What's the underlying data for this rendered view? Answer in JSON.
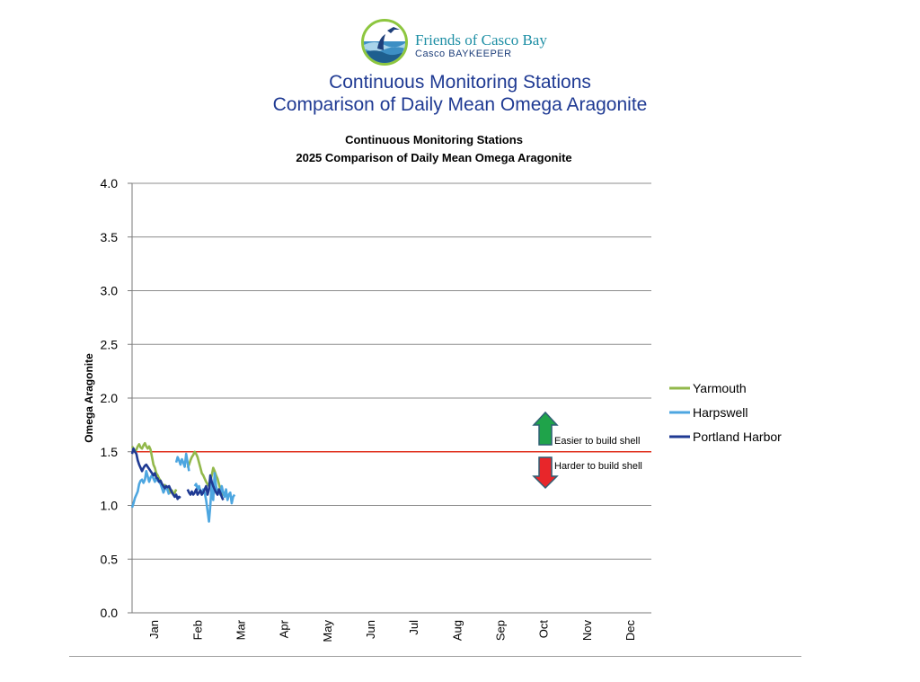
{
  "header": {
    "org_name": "Friends of Casco Bay",
    "org_sub": "Casco BAYKEEPER",
    "title_line1": "Continuous Monitoring Stations",
    "title_line2": "Comparison of Daily Mean Omega Aragonite"
  },
  "chart_data": {
    "type": "line",
    "title_line1": "Continuous Monitoring Stations",
    "title_line2": "2025 Comparison of Daily Mean Omega Aragonite",
    "xlabel": "",
    "ylabel": "Omega Aragonite",
    "ylim": [
      0,
      4
    ],
    "yticks": [
      "0.0",
      "0.5",
      "1.0",
      "1.5",
      "2.0",
      "2.5",
      "3.0",
      "3.5",
      "4.0"
    ],
    "xticks": [
      "Jan",
      "Feb",
      "Mar",
      "Apr",
      "May",
      "Jun",
      "Jul",
      "Aug",
      "Sep",
      "Oct",
      "Nov",
      "Dec"
    ],
    "grid": true,
    "legend_position": "right",
    "threshold": {
      "value": 1.5,
      "color": "#e0301e"
    },
    "annotations": {
      "easier": "Easier to build shell",
      "harder": "Harder to build shell"
    },
    "series": [
      {
        "name": "Yarmouth",
        "color": "#92b84b",
        "segments": [
          [
            [
              1,
              1.55
            ],
            [
              2,
              1.53
            ],
            [
              3,
              1.5
            ],
            [
              4,
              1.52
            ],
            [
              5,
              1.55
            ],
            [
              6,
              1.57
            ],
            [
              7,
              1.54
            ],
            [
              8,
              1.53
            ],
            [
              9,
              1.56
            ],
            [
              10,
              1.58
            ],
            [
              11,
              1.55
            ],
            [
              12,
              1.53
            ],
            [
              13,
              1.55
            ],
            [
              14,
              1.52
            ],
            [
              15,
              1.45
            ],
            [
              16,
              1.38
            ],
            [
              17,
              1.35
            ],
            [
              18,
              1.3
            ],
            [
              19,
              1.28
            ],
            [
              20,
              1.25
            ],
            [
              21,
              1.23
            ],
            [
              22,
              1.2
            ],
            [
              23,
              1.18
            ],
            [
              24,
              1.19
            ],
            [
              25,
              1.17
            ],
            [
              26,
              1.16
            ],
            [
              27,
              1.15
            ],
            [
              28,
              1.12
            ],
            [
              29,
              1.14
            ],
            [
              30,
              1.1
            ],
            [
              31,
              1.12
            ],
            [
              32,
              1.15
            ]
          ],
          [
            [
              40,
              1.35
            ],
            [
              41,
              1.38
            ],
            [
              42,
              1.42
            ],
            [
              43,
              1.45
            ],
            [
              44,
              1.47
            ],
            [
              45,
              1.5
            ],
            [
              46,
              1.48
            ],
            [
              47,
              1.45
            ],
            [
              48,
              1.4
            ],
            [
              49,
              1.35
            ],
            [
              50,
              1.3
            ],
            [
              51,
              1.28
            ],
            [
              52,
              1.25
            ],
            [
              53,
              1.22
            ],
            [
              54,
              1.2
            ],
            [
              55,
              1.18
            ],
            [
              56,
              1.22
            ],
            [
              57,
              1.28
            ],
            [
              58,
              1.35
            ],
            [
              59,
              1.32
            ],
            [
              60,
              1.28
            ],
            [
              61,
              1.25
            ],
            [
              62,
              1.2
            ],
            [
              63,
              1.15
            ],
            [
              64,
              1.12
            ],
            [
              65,
              1.1
            ],
            [
              66,
              1.12
            ],
            [
              67,
              1.08
            ]
          ]
        ]
      },
      {
        "name": "Harpswell",
        "color": "#4da6e0",
        "segments": [
          [
            [
              1,
              0.98
            ],
            [
              2,
              1.02
            ],
            [
              3,
              1.07
            ],
            [
              4,
              1.1
            ],
            [
              5,
              1.13
            ],
            [
              6,
              1.2
            ],
            [
              7,
              1.23
            ],
            [
              8,
              1.24
            ],
            [
              9,
              1.21
            ],
            [
              10,
              1.24
            ],
            [
              11,
              1.32
            ],
            [
              12,
              1.27
            ],
            [
              13,
              1.22
            ],
            [
              14,
              1.26
            ],
            [
              15,
              1.28
            ],
            [
              16,
              1.25
            ],
            [
              17,
              1.22
            ],
            [
              18,
              1.26
            ],
            [
              19,
              1.23
            ],
            [
              20,
              1.22
            ],
            [
              21,
              1.2
            ],
            [
              22,
              1.16
            ],
            [
              23,
              1.12
            ],
            [
              24,
              1.15
            ],
            [
              25,
              1.18
            ],
            [
              26,
              1.14
            ],
            [
              27,
              1.1
            ]
          ],
          [
            [
              32,
              1.4
            ],
            [
              33,
              1.45
            ],
            [
              34,
              1.42
            ],
            [
              35,
              1.38
            ],
            [
              36,
              1.43
            ],
            [
              37,
              1.4
            ],
            [
              38,
              1.36
            ],
            [
              39,
              1.48
            ],
            [
              40,
              1.4
            ],
            [
              41,
              1.32
            ]
          ],
          [
            [
              45,
              1.18
            ],
            [
              46,
              1.2
            ],
            [
              47,
              1.15
            ],
            [
              48,
              1.18
            ],
            [
              49,
              1.13
            ],
            [
              50,
              1.1
            ],
            [
              51,
              1.15
            ],
            [
              52,
              1.12
            ],
            [
              53,
              1.05
            ],
            [
              54,
              0.95
            ],
            [
              55,
              0.85
            ],
            [
              56,
              1.0
            ],
            [
              57,
              1.2
            ],
            [
              58,
              1.05
            ],
            [
              59,
              1.3
            ],
            [
              60,
              1.18
            ],
            [
              61,
              1.12
            ],
            [
              62,
              1.15
            ],
            [
              63,
              1.1
            ],
            [
              64,
              1.18
            ],
            [
              65,
              1.12
            ],
            [
              66,
              1.08
            ],
            [
              67,
              1.15
            ],
            [
              68,
              1.05
            ],
            [
              69,
              1.1
            ],
            [
              70,
              1.12
            ],
            [
              71,
              1.02
            ],
            [
              72,
              1.08
            ],
            [
              73,
              1.1
            ]
          ]
        ]
      },
      {
        "name": "Portland Harbor",
        "color": "#1f3a93",
        "segments": [
          [
            [
              1,
              1.48
            ],
            [
              2,
              1.53
            ],
            [
              3,
              1.5
            ],
            [
              4,
              1.48
            ],
            [
              5,
              1.42
            ],
            [
              6,
              1.38
            ],
            [
              7,
              1.35
            ],
            [
              8,
              1.32
            ],
            [
              9,
              1.35
            ],
            [
              10,
              1.37
            ],
            [
              11,
              1.38
            ],
            [
              12,
              1.36
            ],
            [
              13,
              1.34
            ],
            [
              14,
              1.32
            ],
            [
              15,
              1.3
            ],
            [
              16,
              1.28
            ],
            [
              17,
              1.3
            ],
            [
              18,
              1.26
            ],
            [
              19,
              1.25
            ],
            [
              20,
              1.22
            ],
            [
              21,
              1.23
            ],
            [
              22,
              1.2
            ],
            [
              23,
              1.18
            ],
            [
              24,
              1.16
            ],
            [
              25,
              1.18
            ],
            [
              26,
              1.17
            ],
            [
              27,
              1.18
            ],
            [
              28,
              1.15
            ],
            [
              29,
              1.12
            ],
            [
              30,
              1.1
            ],
            [
              31,
              1.08
            ],
            [
              32,
              1.1
            ],
            [
              33,
              1.06
            ],
            [
              34,
              1.08
            ],
            [
              35,
              1.07
            ]
          ],
          [
            [
              40,
              1.15
            ],
            [
              41,
              1.12
            ],
            [
              42,
              1.1
            ],
            [
              43,
              1.13
            ],
            [
              44,
              1.1
            ],
            [
              45,
              1.12
            ],
            [
              46,
              1.15
            ],
            [
              47,
              1.1
            ],
            [
              48,
              1.12
            ],
            [
              49,
              1.14
            ],
            [
              50,
              1.1
            ],
            [
              51,
              1.12
            ],
            [
              52,
              1.15
            ],
            [
              53,
              1.18
            ],
            [
              54,
              1.1
            ],
            [
              55,
              1.15
            ],
            [
              56,
              1.28
            ],
            [
              57,
              1.22
            ],
            [
              58,
              1.18
            ],
            [
              59,
              1.15
            ],
            [
              60,
              1.12
            ],
            [
              61,
              1.1
            ],
            [
              62,
              1.15
            ],
            [
              63,
              1.12
            ],
            [
              64,
              1.08
            ],
            [
              65,
              1.05
            ]
          ]
        ]
      }
    ]
  }
}
